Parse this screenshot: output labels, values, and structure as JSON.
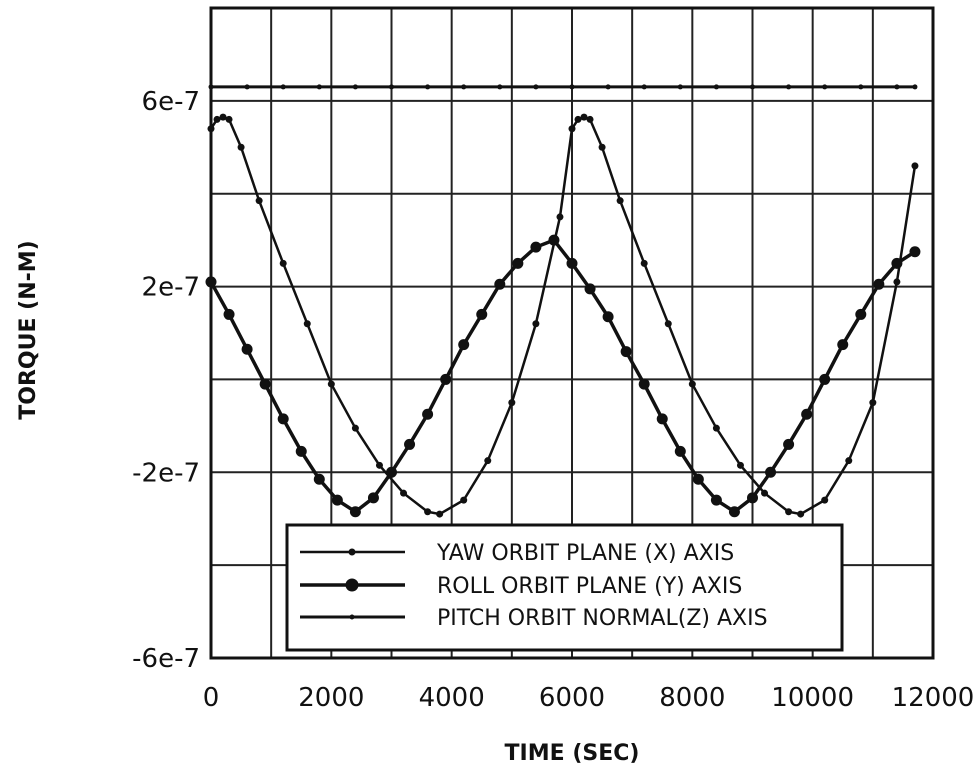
{
  "chart_data": {
    "type": "line",
    "xlabel": "TIME (SEC)",
    "ylabel": "TORQUE   (N-M)",
    "xlim": [
      0,
      12000
    ],
    "ylim": [
      -6e-07,
      8e-07
    ],
    "x_ticks": [
      0,
      2000,
      4000,
      6000,
      8000,
      10000,
      12000
    ],
    "x_tick_labels": [
      "0",
      "2000",
      "4000",
      "6000",
      "8000",
      "10000",
      "12000"
    ],
    "y_ticks": [
      -6e-07,
      -2e-07,
      2e-07,
      6e-07
    ],
    "y_tick_labels": [
      "-6e-7",
      "-2e-7",
      "2e-7",
      "6e-7"
    ],
    "grid": true,
    "legend_position": "bottom-center",
    "series": [
      {
        "name": "YAW ORBIT PLANE (X) AXIS",
        "marker": "small-triangle",
        "x": [
          0,
          100,
          200,
          300,
          500,
          800,
          1200,
          1600,
          2000,
          2400,
          2800,
          3200,
          3600,
          3800,
          4200,
          4600,
          5000,
          5400,
          5800,
          6000,
          6100,
          6200,
          6300,
          6500,
          6800,
          7200,
          7600,
          8000,
          8400,
          8800,
          9200,
          9600,
          9800,
          10200,
          10600,
          11000,
          11400,
          11700
        ],
        "values": [
          5.4e-07,
          5.6e-07,
          5.65e-07,
          5.6e-07,
          5e-07,
          3.85e-07,
          2.5e-07,
          1.2e-07,
          -1e-08,
          -1.05e-07,
          -1.85e-07,
          -2.45e-07,
          -2.85e-07,
          -2.9e-07,
          -2.6e-07,
          -1.75e-07,
          -5e-08,
          1.2e-07,
          3.5e-07,
          5.4e-07,
          5.6e-07,
          5.65e-07,
          5.6e-07,
          5e-07,
          3.85e-07,
          2.5e-07,
          1.2e-07,
          -1e-08,
          -1.05e-07,
          -1.85e-07,
          -2.45e-07,
          -2.85e-07,
          -2.9e-07,
          -2.6e-07,
          -1.75e-07,
          -5e-08,
          2.1e-07,
          4.6e-07
        ]
      },
      {
        "name": "ROLL ORBIT PLANE (Y) AXIS",
        "marker": "circle",
        "x": [
          0,
          300,
          600,
          900,
          1200,
          1500,
          1800,
          2100,
          2400,
          2700,
          3000,
          3300,
          3600,
          3900,
          4200,
          4500,
          4800,
          5100,
          5400,
          5700,
          6000,
          6300,
          6600,
          6900,
          7200,
          7500,
          7800,
          8100,
          8400,
          8700,
          9000,
          9300,
          9600,
          9900,
          10200,
          10500,
          10800,
          11100,
          11400,
          11700
        ],
        "values": [
          2.1e-07,
          1.4e-07,
          6.5e-08,
          -1e-08,
          -8.5e-08,
          -1.55e-07,
          -2.15e-07,
          -2.6e-07,
          -2.85e-07,
          -2.55e-07,
          -2e-07,
          -1.4e-07,
          -7.5e-08,
          0.0,
          7.5e-08,
          1.4e-07,
          2.05e-07,
          2.5e-07,
          2.85e-07,
          3e-07,
          2.5e-07,
          1.95e-07,
          1.35e-07,
          6e-08,
          -1e-08,
          -8.5e-08,
          -1.55e-07,
          -2.15e-07,
          -2.6e-07,
          -2.85e-07,
          -2.55e-07,
          -2e-07,
          -1.4e-07,
          -7.5e-08,
          0.0,
          7.5e-08,
          1.4e-07,
          2.05e-07,
          2.5e-07,
          2.75e-07
        ]
      },
      {
        "name": "PITCH ORBIT NORMAL(Z) AXIS",
        "marker": "small-dot",
        "x": [
          0,
          600,
          1200,
          1800,
          2400,
          3000,
          3600,
          4200,
          4800,
          5400,
          6000,
          6600,
          7200,
          7800,
          8400,
          9000,
          9600,
          10200,
          10800,
          11400,
          11700
        ],
        "values": [
          6.3e-07,
          6.3e-07,
          6.3e-07,
          6.3e-07,
          6.3e-07,
          6.3e-07,
          6.3e-07,
          6.3e-07,
          6.3e-07,
          6.3e-07,
          6.3e-07,
          6.3e-07,
          6.3e-07,
          6.3e-07,
          6.3e-07,
          6.3e-07,
          6.3e-07,
          6.3e-07,
          6.3e-07,
          6.3e-07,
          6.3e-07
        ]
      }
    ]
  }
}
